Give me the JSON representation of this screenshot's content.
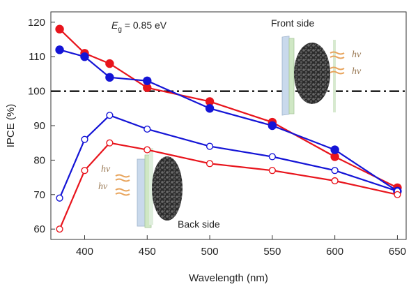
{
  "chart_data": {
    "type": "line",
    "xlabel": "Wavelength (nm)",
    "ylabel": "IPCE (%)",
    "xlim": [
      373,
      657
    ],
    "ylim": [
      57,
      123
    ],
    "xticks": [
      400,
      450,
      500,
      550,
      600,
      650
    ],
    "yticks": [
      60,
      70,
      80,
      90,
      100,
      110,
      120
    ],
    "reference_line": {
      "y": 100,
      "style": "dash-dot",
      "color": "#000000"
    },
    "annotations": {
      "bandgap_symbol": "E",
      "bandgap_subscript": "g",
      "bandgap_value": " = 0.85 eV",
      "front_label": "Front side",
      "back_label": "Back side",
      "photon_label": "hν"
    },
    "series": [
      {
        "color": "#e8141c",
        "marker": "filled",
        "size": "large",
        "x": [
          380,
          400,
          420,
          450,
          500,
          550,
          600,
          650
        ],
        "y": [
          118,
          111,
          108,
          101,
          97,
          91,
          81,
          72
        ]
      },
      {
        "color": "#1414d6",
        "marker": "filled",
        "size": "large",
        "x": [
          380,
          400,
          420,
          450,
          500,
          550,
          600,
          650
        ],
        "y": [
          112,
          110,
          104,
          103,
          95,
          90,
          83,
          71
        ]
      },
      {
        "color": "#1414d6",
        "marker": "open",
        "size": "small",
        "x": [
          380,
          400,
          420,
          450,
          500,
          550,
          600,
          650
        ],
        "y": [
          69,
          86,
          93,
          89,
          84,
          81,
          77,
          71
        ]
      },
      {
        "color": "#e8141c",
        "marker": "open",
        "size": "small",
        "x": [
          380,
          400,
          420,
          450,
          500,
          550,
          600,
          650
        ],
        "y": [
          60,
          77,
          85,
          83,
          79,
          77,
          74,
          70
        ]
      }
    ]
  }
}
